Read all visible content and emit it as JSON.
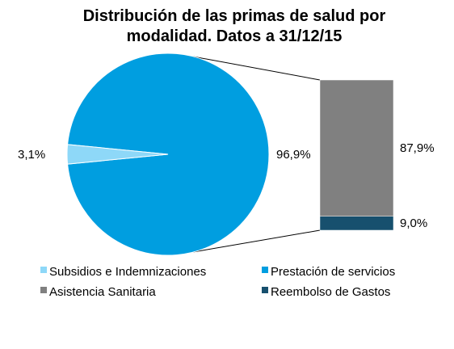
{
  "chart_data": {
    "type": "pie",
    "title_line1": "Distribución  de las primas de salud por",
    "title_line2": "modalidad. Datos a 31/12/15",
    "pie": {
      "slices": [
        {
          "name": "Prestación de servicios",
          "value": 96.9,
          "label": "96,9%",
          "color": "#009EE0"
        },
        {
          "name": "Subsidios e Indemnizaciones",
          "value": 3.1,
          "label": "3,1%",
          "color": "#8ED8F8"
        }
      ]
    },
    "breakdown": {
      "of": "Prestación de servicios",
      "segments": [
        {
          "name": "Asistencia Sanitaria",
          "value": 87.9,
          "label": "87,9%",
          "color": "#808080"
        },
        {
          "name": "Reembolso de Gastos",
          "value": 9.0,
          "label": "9,0%",
          "color": "#17506E"
        }
      ]
    },
    "legend": [
      {
        "label": "Subsidios e Indemnizaciones",
        "color": "#8ED8F8"
      },
      {
        "label": "Prestación de servicios",
        "color": "#009EE0"
      },
      {
        "label": "Asistencia Sanitaria",
        "color": "#808080"
      },
      {
        "label": "Reembolso de Gastos",
        "color": "#17506E"
      }
    ],
    "legend_placement": "bottom"
  }
}
